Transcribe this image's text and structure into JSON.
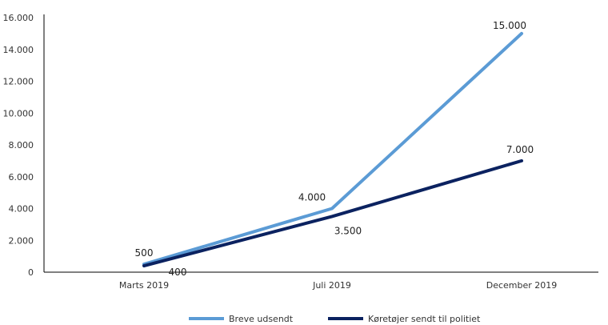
{
  "chart_data": {
    "type": "line",
    "categories": [
      "Marts 2019",
      "Juli 2019",
      "December 2019"
    ],
    "series": [
      {
        "name": "Breve udsendt",
        "values": [
          500,
          4000,
          15000
        ],
        "labels": [
          "500",
          "4.000",
          "15.000"
        ],
        "color": "#5b9bd5"
      },
      {
        "name": "Køretøjer sendt til politiet",
        "values": [
          400,
          3500,
          7000
        ],
        "labels": [
          "400",
          "3.500",
          "7.000"
        ],
        "color": "#0b2260"
      }
    ],
    "ylim": [
      0,
      16000
    ],
    "yticks": [
      0,
      2000,
      4000,
      6000,
      8000,
      10000,
      12000,
      14000,
      16000
    ],
    "ytick_labels": [
      "0",
      "2.000",
      "4.000",
      "6.000",
      "8.000",
      "10.000",
      "12.000",
      "14.000",
      "16.000"
    ],
    "grid": false,
    "legend": "bottom"
  }
}
